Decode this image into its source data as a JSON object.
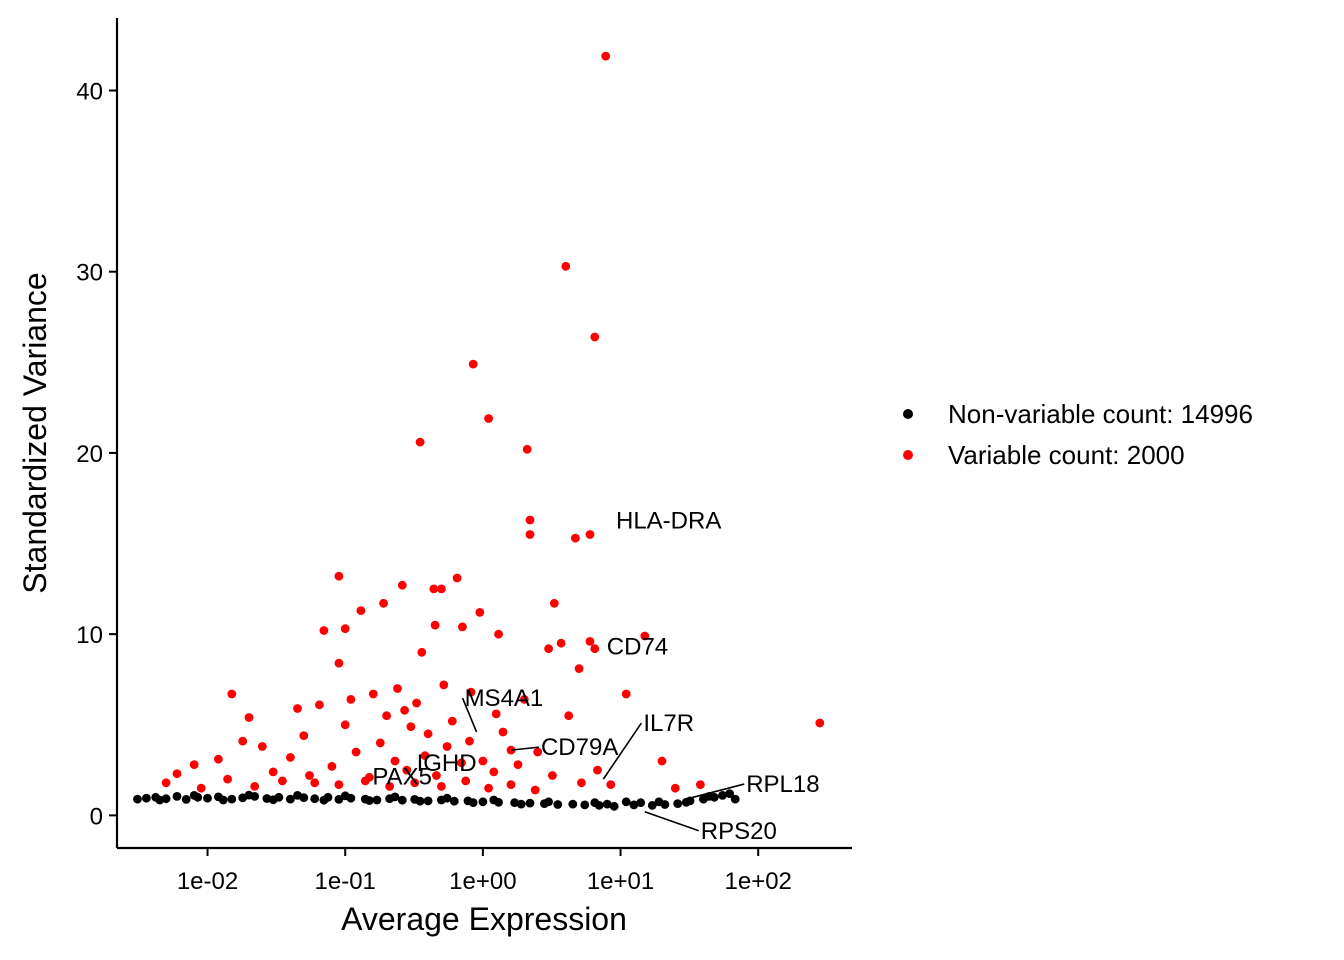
{
  "chart_data": {
    "type": "scatter",
    "xlabel": "Average Expression",
    "ylabel": "Standardized Variance",
    "x_scale": "log10",
    "xlim": [
      0.0022,
      480
    ],
    "ylim": [
      -1.8,
      44
    ],
    "x_ticks": [
      {
        "value": 0.01,
        "label": "1e-02"
      },
      {
        "value": 0.1,
        "label": "1e-01"
      },
      {
        "value": 1,
        "label": "1e+00"
      },
      {
        "value": 10,
        "label": "1e+01"
      },
      {
        "value": 100,
        "label": "1e+02"
      }
    ],
    "y_ticks": [
      {
        "value": 0,
        "label": "0"
      },
      {
        "value": 10,
        "label": "10"
      },
      {
        "value": 20,
        "label": "20"
      },
      {
        "value": 30,
        "label": "30"
      },
      {
        "value": 40,
        "label": "40"
      }
    ],
    "grid": false,
    "legend_position": "right",
    "series": [
      {
        "name": "Non-variable count: 14996",
        "color": "#000000",
        "points": [
          [
            0.0031,
            0.9
          ],
          [
            0.0036,
            0.95
          ],
          [
            0.0042,
            1.0
          ],
          [
            0.005,
            0.92
          ],
          [
            0.006,
            1.05
          ],
          [
            0.007,
            0.88
          ],
          [
            0.0085,
            1.0
          ],
          [
            0.01,
            0.95
          ],
          [
            0.012,
            1.02
          ],
          [
            0.015,
            0.9
          ],
          [
            0.018,
            0.97
          ],
          [
            0.022,
            1.05
          ],
          [
            0.027,
            0.93
          ],
          [
            0.033,
            1.0
          ],
          [
            0.04,
            0.9
          ],
          [
            0.05,
            0.98
          ],
          [
            0.06,
            0.92
          ],
          [
            0.075,
            1.0
          ],
          [
            0.09,
            0.88
          ],
          [
            0.11,
            0.95
          ],
          [
            0.14,
            0.9
          ],
          [
            0.17,
            0.85
          ],
          [
            0.21,
            0.92
          ],
          [
            0.26,
            0.84
          ],
          [
            0.32,
            0.88
          ],
          [
            0.4,
            0.8
          ],
          [
            0.5,
            0.85
          ],
          [
            0.62,
            0.78
          ],
          [
            0.78,
            0.8
          ],
          [
            1.0,
            0.75
          ],
          [
            1.3,
            0.72
          ],
          [
            1.7,
            0.7
          ],
          [
            2.2,
            0.68
          ],
          [
            2.8,
            0.65
          ],
          [
            3.5,
            0.6
          ],
          [
            4.5,
            0.62
          ],
          [
            5.5,
            0.58
          ],
          [
            7.0,
            0.55
          ],
          [
            9.0,
            0.5
          ],
          [
            11.0,
            0.75
          ],
          [
            14.0,
            0.7
          ],
          [
            17.0,
            0.55
          ],
          [
            21.0,
            0.6
          ],
          [
            26.0,
            0.65
          ],
          [
            32.0,
            0.8
          ],
          [
            40.0,
            0.9
          ],
          [
            48.0,
            1.0
          ],
          [
            55.0,
            1.1
          ],
          [
            62.0,
            1.2
          ],
          [
            68.0,
            0.9
          ],
          [
            0.0045,
            0.85
          ],
          [
            0.008,
            1.1
          ],
          [
            0.013,
            0.85
          ],
          [
            0.02,
            1.12
          ],
          [
            0.03,
            0.86
          ],
          [
            0.045,
            1.1
          ],
          [
            0.07,
            0.84
          ],
          [
            0.1,
            1.08
          ],
          [
            0.15,
            0.82
          ],
          [
            0.23,
            1.02
          ],
          [
            0.35,
            0.78
          ],
          [
            0.55,
            0.95
          ],
          [
            0.85,
            0.7
          ],
          [
            1.2,
            0.85
          ],
          [
            1.9,
            0.62
          ],
          [
            3.0,
            0.75
          ],
          [
            6.5,
            0.7
          ],
          [
            8.0,
            0.62
          ],
          [
            12.5,
            0.58
          ],
          [
            19.0,
            0.75
          ],
          [
            30.0,
            0.72
          ],
          [
            44.0,
            1.05
          ]
        ]
      },
      {
        "name": "Variable count: 2000",
        "color": "#ff0000",
        "points": [
          [
            7.8,
            41.9
          ],
          [
            4.0,
            30.3
          ],
          [
            6.5,
            26.4
          ],
          [
            0.85,
            24.9
          ],
          [
            1.1,
            21.9
          ],
          [
            0.35,
            20.6
          ],
          [
            2.1,
            20.2
          ],
          [
            2.2,
            16.3
          ],
          [
            2.2,
            15.5
          ],
          [
            4.7,
            15.3
          ],
          [
            6.0,
            15.5
          ],
          [
            0.09,
            13.2
          ],
          [
            0.65,
            13.1
          ],
          [
            0.26,
            12.7
          ],
          [
            0.44,
            12.5
          ],
          [
            0.5,
            12.5
          ],
          [
            0.13,
            11.3
          ],
          [
            0.19,
            11.7
          ],
          [
            3.3,
            11.7
          ],
          [
            0.95,
            11.2
          ],
          [
            0.45,
            10.5
          ],
          [
            0.71,
            10.4
          ],
          [
            0.07,
            10.2
          ],
          [
            0.1,
            10.3
          ],
          [
            1.3,
            10.0
          ],
          [
            15.0,
            9.9
          ],
          [
            6.0,
            9.6
          ],
          [
            6.5,
            9.2
          ],
          [
            3.0,
            9.2
          ],
          [
            3.7,
            9.5
          ],
          [
            0.36,
            9.0
          ],
          [
            0.09,
            8.4
          ],
          [
            5.0,
            8.1
          ],
          [
            11.0,
            6.7
          ],
          [
            0.015,
            6.7
          ],
          [
            0.1,
            5.0
          ],
          [
            280.0,
            5.1
          ],
          [
            20.0,
            3.0
          ],
          [
            25.0,
            1.5
          ],
          [
            38.0,
            1.7
          ],
          [
            1.6,
            3.6
          ],
          [
            0.4,
            4.5
          ],
          [
            0.2,
            5.5
          ],
          [
            0.05,
            4.4
          ],
          [
            0.025,
            3.8
          ],
          [
            0.008,
            2.8
          ],
          [
            0.005,
            1.8
          ],
          [
            0.006,
            2.3
          ],
          [
            0.012,
            3.1
          ],
          [
            0.018,
            4.1
          ],
          [
            0.03,
            2.4
          ],
          [
            0.04,
            3.2
          ],
          [
            0.06,
            1.8
          ],
          [
            0.08,
            2.7
          ],
          [
            0.12,
            3.5
          ],
          [
            0.15,
            2.1
          ],
          [
            0.18,
            4.0
          ],
          [
            0.23,
            3.0
          ],
          [
            0.28,
            2.5
          ],
          [
            0.3,
            4.9
          ],
          [
            0.38,
            3.3
          ],
          [
            0.46,
            2.2
          ],
          [
            0.55,
            3.8
          ],
          [
            0.6,
            5.2
          ],
          [
            0.7,
            2.9
          ],
          [
            0.8,
            4.1
          ],
          [
            1.0,
            3.0
          ],
          [
            1.2,
            2.4
          ],
          [
            1.4,
            4.6
          ],
          [
            1.8,
            2.8
          ],
          [
            2.5,
            3.5
          ],
          [
            3.2,
            2.2
          ],
          [
            4.2,
            5.5
          ],
          [
            5.2,
            1.8
          ],
          [
            6.8,
            2.5
          ],
          [
            8.5,
            1.7
          ],
          [
            0.009,
            1.5
          ],
          [
            0.014,
            2.0
          ],
          [
            0.022,
            1.6
          ],
          [
            0.035,
            1.9
          ],
          [
            0.055,
            2.2
          ],
          [
            0.09,
            1.7
          ],
          [
            0.14,
            1.9
          ],
          [
            0.21,
            1.6
          ],
          [
            0.32,
            1.8
          ],
          [
            0.5,
            1.6
          ],
          [
            0.75,
            1.9
          ],
          [
            1.1,
            1.5
          ],
          [
            1.6,
            1.7
          ],
          [
            2.4,
            1.4
          ],
          [
            0.02,
            5.4
          ],
          [
            0.045,
            5.9
          ],
          [
            0.065,
            6.1
          ],
          [
            0.11,
            6.4
          ],
          [
            0.16,
            6.7
          ],
          [
            0.24,
            7.0
          ],
          [
            0.33,
            6.2
          ],
          [
            0.52,
            7.2
          ],
          [
            0.82,
            6.8
          ],
          [
            1.25,
            5.6
          ],
          [
            2.0,
            6.4
          ],
          [
            0.27,
            5.8
          ]
        ]
      }
    ],
    "annotations": [
      {
        "label": "HLA-DRA",
        "x": 6.0,
        "y": 15.5
      },
      {
        "label": "CD74",
        "x": 6.5,
        "y": 9.2
      },
      {
        "label": "MS4A1",
        "x": 0.9,
        "y": 4.6
      },
      {
        "label": "CD79A",
        "x": 1.6,
        "y": 3.6
      },
      {
        "label": "IL7R",
        "x": 7.5,
        "y": 2.0
      },
      {
        "label": "IGHD",
        "x": 0.9,
        "y": 3.0
      },
      {
        "label": "PAX5",
        "x": 0.22,
        "y": 1.7
      },
      {
        "label": "RPL18",
        "x": 30.0,
        "y": 0.9
      },
      {
        "label": "RPS20",
        "x": 15.0,
        "y": 0.2
      }
    ]
  }
}
